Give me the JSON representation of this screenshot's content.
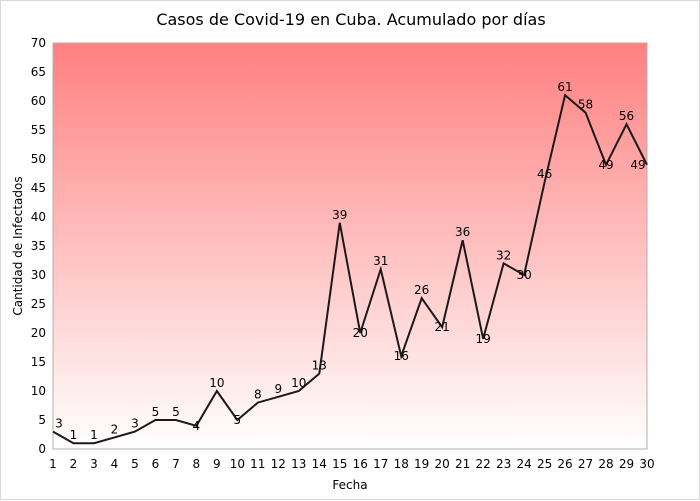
{
  "chart_data": {
    "type": "line",
    "title": "Casos de Covid-19 en Cuba. Acumulado por días",
    "xlabel": "Fecha",
    "ylabel": "Cantidad de Infectados",
    "x": [
      1,
      2,
      3,
      4,
      5,
      6,
      7,
      8,
      9,
      10,
      11,
      12,
      13,
      14,
      15,
      16,
      17,
      18,
      19,
      20,
      21,
      22,
      23,
      24,
      25,
      26,
      27,
      28,
      29,
      30
    ],
    "values": [
      3,
      1,
      1,
      2,
      3,
      5,
      5,
      4,
      10,
      5,
      8,
      9,
      10,
      13,
      39,
      20,
      31,
      16,
      26,
      21,
      36,
      19,
      32,
      30,
      46,
      61,
      58,
      49,
      56,
      49
    ],
    "xlim": [
      1,
      30
    ],
    "ylim": [
      0,
      70
    ],
    "yticks": [
      0,
      5,
      10,
      15,
      20,
      25,
      30,
      35,
      40,
      45,
      50,
      55,
      60,
      65,
      70
    ],
    "grid": false,
    "legend": "none",
    "colors": {
      "line": "#1a1a1a",
      "gradient_top": "#ff8080",
      "gradient_bottom": "#ffffff",
      "plot_border": "#b0b0b0"
    }
  }
}
